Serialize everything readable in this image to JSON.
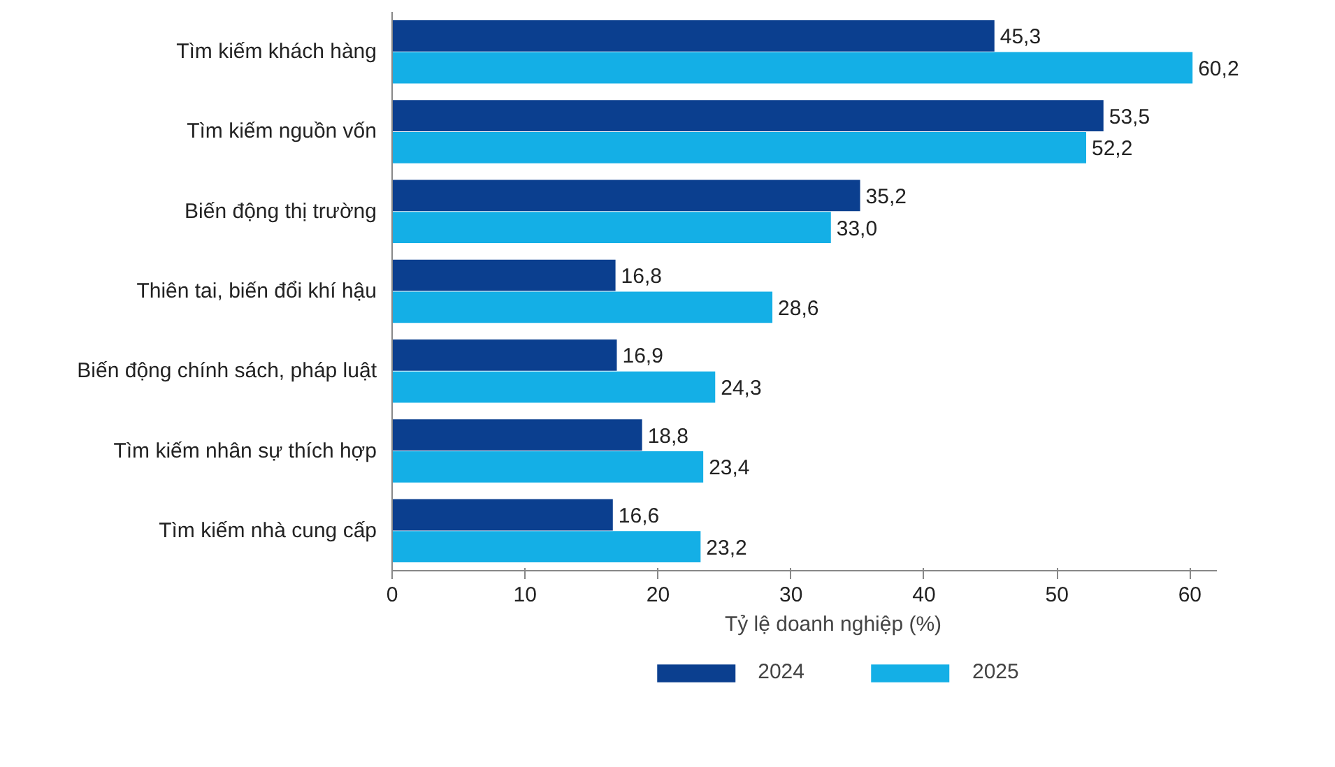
{
  "chart_data": {
    "type": "bar",
    "orientation": "horizontal",
    "xlabel": "Tỷ lệ doanh nghiệp (%)",
    "categories": [
      "Tìm kiếm khách hàng",
      "Tìm kiếm nguồn vốn",
      "Biến động thị trường",
      "Thiên tai, biến đổi khí hậu",
      "Biến động chính sách, pháp luật",
      "Tìm kiếm nhân sự thích hợp",
      "Tìm kiếm nhà cung cấp"
    ],
    "series": [
      {
        "name": "2024",
        "color": "#0b3f8f",
        "values": [
          45.3,
          53.5,
          35.2,
          16.8,
          16.9,
          18.8,
          16.6
        ],
        "value_labels": [
          "45,3",
          "53,5",
          "35,2",
          "16,8",
          "16,9",
          "18,8",
          "16,6"
        ]
      },
      {
        "name": "2025",
        "color": "#14afe6",
        "values": [
          60.2,
          52.2,
          33.0,
          28.6,
          24.3,
          23.4,
          23.2
        ],
        "value_labels": [
          "60,2",
          "52,2",
          "33,0",
          "28,6",
          "24,3",
          "23,4",
          "23,2"
        ]
      }
    ],
    "xlim": [
      0,
      62
    ],
    "xticks": [
      0,
      10,
      20,
      30,
      40,
      50,
      60
    ],
    "legend": "bottom"
  }
}
